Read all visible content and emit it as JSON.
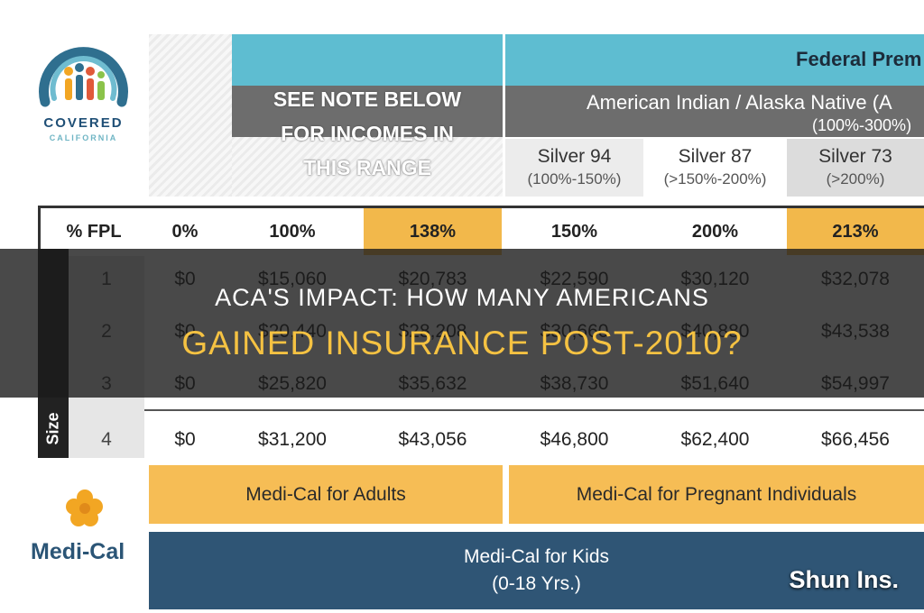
{
  "logos": {
    "covered_california": {
      "line1": "COVERED",
      "line2": "CALIFORNIA"
    },
    "medi_cal": {
      "label": "Medi-Cal",
      "flower_color": "#f2a623"
    }
  },
  "header": {
    "note": [
      "SEE NOTE BELOW",
      "FOR INCOMES IN",
      "THIS RANGE"
    ],
    "federal_title": "Federal Prem",
    "american_indian": {
      "line1": "American Indian / Alaska Native (A",
      "line2": "(100%-300%)"
    },
    "silver_tiers": [
      {
        "name": "Silver 94",
        "range": "(100%-150%)"
      },
      {
        "name": "Silver 87",
        "range": "(>150%-200%)"
      },
      {
        "name": "Silver 73",
        "range": "(>200%)"
      }
    ]
  },
  "table": {
    "fpl_label": "% FPL",
    "columns": [
      "0%",
      "100%",
      "138%",
      "150%",
      "200%",
      "213%"
    ],
    "size_label": "Size",
    "rows": [
      {
        "size": "1",
        "values": [
          "$0",
          "$15,060",
          "$20,783",
          "$22,590",
          "$30,120",
          "$32,078"
        ]
      },
      {
        "size": "2",
        "values": [
          "$0",
          "$20,440",
          "$28,208",
          "$30,660",
          "$40,880",
          "$43,538"
        ]
      },
      {
        "size": "3",
        "values": [
          "$0",
          "$25,820",
          "$35,632",
          "$38,730",
          "$51,640",
          "$54,997"
        ]
      },
      {
        "size": "4",
        "values": [
          "$0",
          "$31,200",
          "$43,056",
          "$46,800",
          "$62,400",
          "$66,456"
        ]
      }
    ]
  },
  "medi_cal": {
    "adults": "Medi-Cal for Adults",
    "pregnant": "Medi-Cal for Pregnant Individuals",
    "kids_line1": "Medi-Cal for Kids",
    "kids_line2": "(0-18 Yrs.)"
  },
  "overlay": {
    "line1": "ACA'S IMPACT: HOW MANY AMERICANS",
    "line2": "GAINED INSURANCE POST-2010?"
  },
  "watermark": "Shun Ins.",
  "colors": {
    "teal": "#5ebdd1",
    "gold": "#f2b84b",
    "navy": "#2f5575",
    "overlay_title": "#f5c242"
  }
}
